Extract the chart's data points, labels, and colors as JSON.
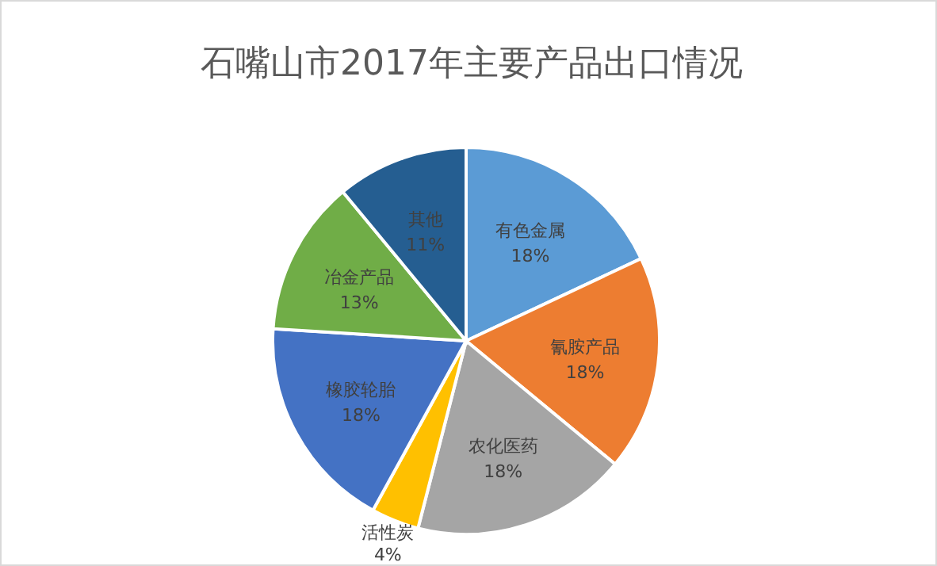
{
  "chart_data": {
    "type": "pie",
    "title": "石嘴山市2017年主要产品出口情况",
    "categories": [
      "有色金属",
      "氰胺产品",
      "农化医药",
      "活性炭",
      "橡胶轮胎",
      "冶金产品",
      "其他"
    ],
    "values": [
      18,
      18,
      18,
      4,
      18,
      13,
      11
    ],
    "colors": [
      "#5b9bd5",
      "#ed7d31",
      "#a5a5a5",
      "#ffc000",
      "#4472c4",
      "#70ad47",
      "#255e91"
    ],
    "value_labels": [
      "18%",
      "18%",
      "18%",
      "4%",
      "18%",
      "13%",
      "11%"
    ]
  }
}
